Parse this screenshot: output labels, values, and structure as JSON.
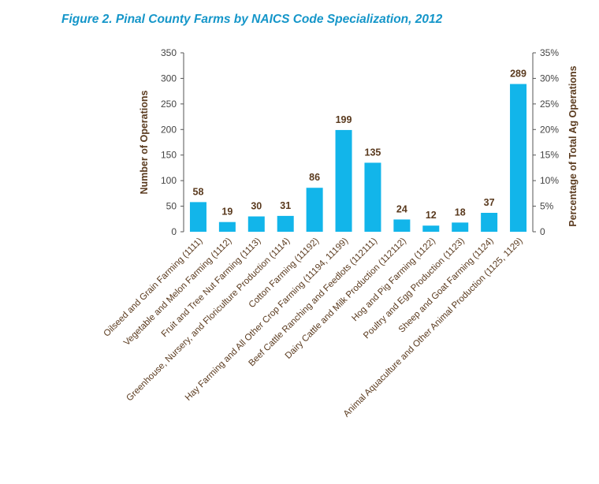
{
  "chart_data": {
    "type": "bar",
    "title": "Figure 2. Pinal County Farms by NAICS Code Specialization, 2012",
    "title_prefix": "Figure 2.",
    "title_text": "Pinal County Farms by NAICS Code Specialization, 2012",
    "ylabel": "Number of Operations",
    "y2label": "Percentage of Total Ag Operations",
    "ylim": [
      0,
      350
    ],
    "y_ticks": [
      0,
      50,
      100,
      150,
      200,
      250,
      300,
      350
    ],
    "y2lim": [
      0,
      35
    ],
    "y2_ticks": [
      "0",
      "5%",
      "10%",
      "15%",
      "20%",
      "25%",
      "30%",
      "35%"
    ],
    "categories": [
      "Oilseed and Grain Farming (1111)",
      "Vegetable and Melon Farming (1112)",
      "Fruit and Tree Nut Farming (1113)",
      "Greenhouse, Nursery, and Floriculture Production (1114)",
      "Cotton Farming (11192)",
      "Hay Farming and All Other Crop Farming (11194, 11199)",
      "Beef Cattle Ranching and Feedlots (112111)",
      "Dairy Cattle and Milk Production (112112)",
      "Hog and Pig Farming (1122)",
      "Poultry and Egg Production (1123)",
      "Sheep and Goat Farming (1124)",
      "Animal Aquaculture and Other Animal Production (1125, 1129)"
    ],
    "values": [
      58,
      19,
      30,
      31,
      86,
      199,
      135,
      24,
      12,
      18,
      37,
      289
    ],
    "colors": {
      "bar": "#12b5ea",
      "labels": "#5a3a1e",
      "title": "#1596c9",
      "axis": "#444444"
    }
  }
}
